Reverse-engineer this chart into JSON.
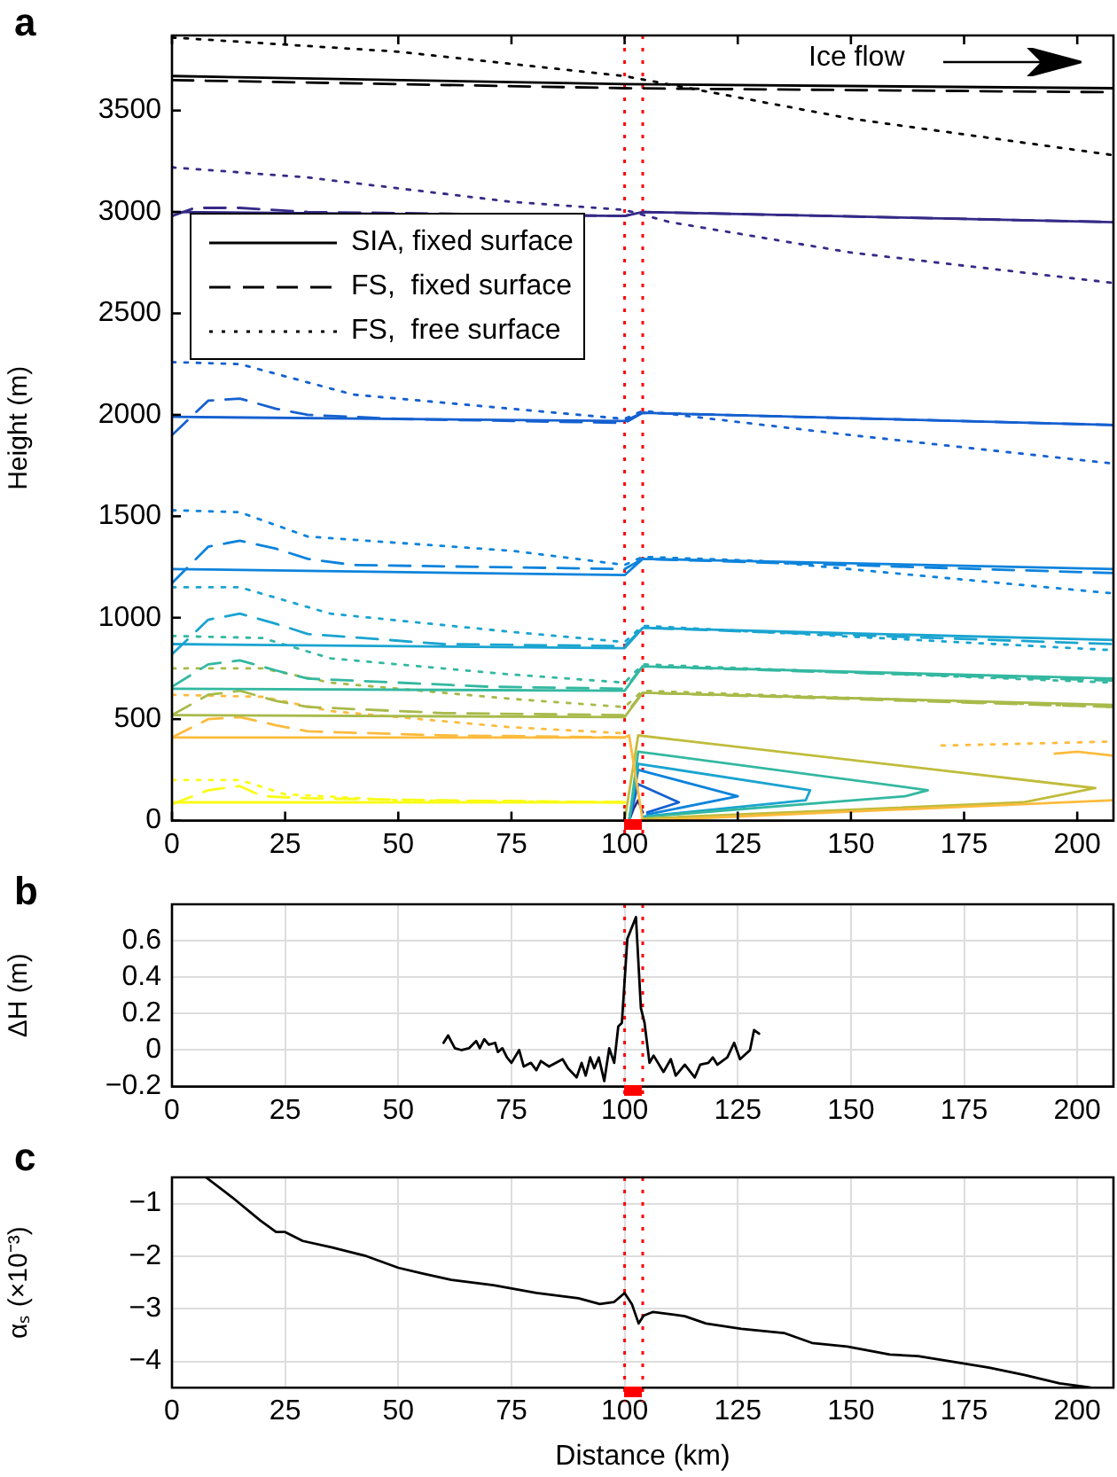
{
  "chart_data": [
    {
      "type": "line",
      "title": "a",
      "ylabel": "Height (m)",
      "xlim": [
        0,
        208
      ],
      "ylim": [
        0,
        3870
      ],
      "xticks": [
        0,
        25,
        50,
        75,
        100,
        125,
        150,
        175,
        200
      ],
      "yticks": [
        0,
        500,
        1000,
        1500,
        2000,
        2500,
        3000,
        3500
      ],
      "grid": false,
      "legend": "top left",
      "annotations": [
        "Ice flow"
      ],
      "ref_lines": [
        {
          "axis": "x",
          "value": 100,
          "color": "#ff0000",
          "line_style": "dotted"
        },
        {
          "axis": "x",
          "value": 104,
          "color": "#ff0000",
          "line_style": "dotted"
        }
      ],
      "series": [
        {
          "name": "SIA, fixed surface",
          "color": "#000000",
          "line_style": "solid",
          "x": [
            0,
            100,
            208
          ],
          "values": [
            3670,
            3630,
            3610
          ]
        },
        {
          "name": "FS,  fixed surface",
          "color": "#000000",
          "line_style": "dashed",
          "x": [
            0,
            100,
            208
          ],
          "values": [
            3650,
            3610,
            3590
          ]
        },
        {
          "name": "FS,  free surface",
          "color": "#000000",
          "line_style": "dotted",
          "x": [
            0,
            50,
            100,
            150,
            208
          ],
          "values": [
            3860,
            3790,
            3670,
            3460,
            3280
          ]
        },
        {
          "color": "#352a87",
          "line_style": "solid",
          "x": [
            0,
            100,
            104,
            208
          ],
          "values": [
            3000,
            2980,
            3000,
            2950
          ]
        },
        {
          "color": "#352a87",
          "line_style": "dashed",
          "x": [
            0,
            5,
            15,
            30,
            100,
            104,
            208
          ],
          "values": [
            2980,
            3020,
            3020,
            3000,
            2980,
            3000,
            2950
          ]
        },
        {
          "color": "#352a87",
          "line_style": "dotted",
          "x": [
            0,
            30,
            75,
            100,
            110,
            150,
            208
          ],
          "values": [
            3220,
            3170,
            3050,
            3010,
            2950,
            2800,
            2650
          ]
        },
        {
          "color": "#1560d0",
          "line_style": "solid",
          "x": [
            0,
            100,
            104,
            208
          ],
          "values": [
            1990,
            1970,
            2010,
            1950
          ]
        },
        {
          "color": "#1560d0",
          "line_style": "dashed",
          "x": [
            0,
            8,
            15,
            23,
            30,
            50,
            100,
            104,
            208
          ],
          "values": [
            1900,
            2070,
            2080,
            2030,
            2000,
            1980,
            1960,
            2010,
            1950
          ]
        },
        {
          "color": "#1560d0",
          "line_style": "dotted",
          "x": [
            0,
            15,
            40,
            75,
            100,
            104,
            150,
            208
          ],
          "values": [
            2260,
            2250,
            2100,
            2030,
            1980,
            2020,
            1900,
            1760
          ]
        },
        {
          "color": "#0d83dc",
          "line_style": "solid",
          "x": [
            0,
            100,
            104,
            208
          ],
          "values": [
            1240,
            1210,
            1290,
            1240
          ]
        },
        {
          "color": "#0d83dc",
          "line_style": "dashed",
          "x": [
            0,
            8,
            15,
            23,
            30,
            40,
            100,
            104,
            208
          ],
          "values": [
            1170,
            1350,
            1380,
            1340,
            1290,
            1260,
            1240,
            1290,
            1220
          ]
        },
        {
          "color": "#0d83dc",
          "line_style": "dotted",
          "x": [
            0,
            15,
            30,
            75,
            100,
            104,
            130,
            208
          ],
          "values": [
            1530,
            1520,
            1400,
            1330,
            1260,
            1300,
            1280,
            1120
          ]
        },
        {
          "color": "#1aa4d0",
          "line_style": "solid",
          "x": [
            0,
            100,
            104,
            208
          ],
          "values": [
            870,
            850,
            950,
            890
          ]
        },
        {
          "color": "#1aa4d0",
          "line_style": "dashed",
          "x": [
            0,
            8,
            15,
            23,
            30,
            60,
            100,
            104,
            208
          ],
          "values": [
            820,
            990,
            1020,
            970,
            920,
            870,
            860,
            950,
            870
          ]
        },
        {
          "color": "#1aa4d0",
          "line_style": "dotted",
          "x": [
            0,
            15,
            35,
            75,
            100,
            104,
            208
          ],
          "values": [
            1150,
            1150,
            1020,
            930,
            880,
            960,
            840
          ]
        },
        {
          "color": "#33b8a0",
          "line_style": "solid",
          "x": [
            0,
            100,
            104,
            208
          ],
          "values": [
            650,
            640,
            760,
            700
          ]
        },
        {
          "color": "#33b8a0",
          "line_style": "dashed",
          "x": [
            0,
            8,
            15,
            23,
            30,
            70,
            100,
            104,
            208
          ],
          "values": [
            660,
            770,
            790,
            740,
            700,
            660,
            650,
            760,
            690
          ]
        },
        {
          "color": "#33b8a0",
          "line_style": "dotted",
          "x": [
            0,
            20,
            35,
            75,
            100,
            104,
            208
          ],
          "values": [
            910,
            900,
            800,
            720,
            680,
            770,
            680
          ]
        },
        {
          "color": "#a8ba4a",
          "line_style": "solid",
          "x": [
            0,
            100,
            104,
            208
          ],
          "values": [
            520,
            510,
            630,
            570
          ]
        },
        {
          "color": "#a8ba4a",
          "line_style": "dashed",
          "x": [
            0,
            8,
            15,
            23,
            30,
            60,
            100,
            104,
            208
          ],
          "values": [
            520,
            620,
            640,
            590,
            560,
            530,
            520,
            630,
            560
          ]
        },
        {
          "color": "#a8ba4a",
          "line_style": "dotted",
          "x": [
            0,
            20,
            35,
            75,
            100,
            104,
            208
          ],
          "values": [
            750,
            750,
            680,
            600,
            560,
            640,
            560
          ]
        },
        {
          "color": "#fcbb3d",
          "line_style": "solid",
          "x": [
            0,
            100,
            101,
            104,
            208
          ],
          "values": [
            410,
            410,
            420,
            0,
            100
          ]
        },
        {
          "color": "#fcbb3d",
          "line_style": "dashed",
          "x": [
            0,
            8,
            15,
            23,
            30,
            60,
            100
          ],
          "values": [
            410,
            500,
            510,
            470,
            440,
            420,
            410
          ]
        },
        {
          "color": "#fcbb3d",
          "line_style": "dotted",
          "x": [
            0,
            20,
            35,
            75,
            100
          ],
          "values": [
            620,
            610,
            540,
            460,
            430
          ]
        },
        {
          "color": "#fcbb3d",
          "line_style": "dotted",
          "x": [
            170,
            190,
            208
          ],
          "values": [
            370,
            380,
            390
          ]
        },
        {
          "color": "#fcbb3d",
          "line_style": "solid",
          "x": [
            195,
            200,
            208
          ],
          "values": [
            330,
            340,
            320
          ]
        },
        {
          "color": "#f9fb15",
          "line_style": "solid",
          "x": [
            0,
            100
          ],
          "values": [
            90,
            90
          ]
        },
        {
          "color": "#f9fb15",
          "line_style": "dashed",
          "x": [
            0,
            8,
            15,
            20,
            30,
            60,
            100
          ],
          "values": [
            80,
            150,
            170,
            120,
            110,
            100,
            90
          ]
        },
        {
          "color": "#f9fb15",
          "line_style": "dotted",
          "x": [
            0,
            15,
            25,
            50,
            100
          ],
          "values": [
            200,
            200,
            130,
            100,
            90
          ]
        },
        {
          "color": "#c0bc3c",
          "line_style": "solid",
          "x": [
            100,
            103,
            204,
            188,
            104
          ],
          "values": [
            0,
            420,
            160,
            90,
            10
          ]
        },
        {
          "color": "#33b8a0",
          "line_style": "solid",
          "x": [
            101,
            103,
            167,
            162,
            105
          ],
          "values": [
            0,
            340,
            150,
            120,
            20
          ]
        },
        {
          "color": "#1aa4d0",
          "line_style": "solid",
          "x": [
            101,
            103,
            141,
            140,
            104
          ],
          "values": [
            0,
            280,
            150,
            100,
            20
          ]
        },
        {
          "color": "#0d83dc",
          "line_style": "solid",
          "x": [
            101,
            103,
            125,
            105
          ],
          "values": [
            0,
            250,
            120,
            30
          ]
        },
        {
          "color": "#1560d0",
          "line_style": "solid",
          "x": [
            101,
            103,
            112,
            105
          ],
          "values": [
            0,
            180,
            90,
            40
          ]
        },
        {
          "color": "#352a87",
          "line_style": "solid",
          "x": [
            101,
            102,
            103,
            104
          ],
          "values": [
            0,
            60,
            100,
            40
          ]
        }
      ]
    },
    {
      "type": "line",
      "title": "b",
      "ylabel": "ΔH (m)",
      "xlim": [
        0,
        208
      ],
      "ylim": [
        -0.2,
        0.8
      ],
      "xticks": [
        0,
        25,
        50,
        75,
        100,
        125,
        150,
        175,
        200
      ],
      "yticks": [
        -0.2,
        0,
        0.2,
        0.4,
        0.6
      ],
      "grid": true,
      "ref_lines": [
        {
          "axis": "x",
          "value": 100,
          "color": "#ff0000",
          "line_style": "dotted"
        },
        {
          "axis": "x",
          "value": 104,
          "color": "#ff0000",
          "line_style": "dotted"
        }
      ],
      "series": [
        {
          "color": "#000000",
          "line_style": "solid",
          "x": [
            60,
            61,
            62.5,
            64,
            65.6,
            67.2,
            68,
            69,
            70,
            71.4,
            72,
            73,
            74,
            75,
            76.7,
            77.7,
            79.3,
            80.5,
            81.5,
            83.3,
            86.3,
            87.5,
            89.4,
            90.5,
            91.4,
            92.4,
            93.3,
            94.3,
            95.5,
            96.6,
            97.7,
            98.6,
            99.4,
            100.6,
            102.5,
            103.6,
            104.4,
            105.5,
            106.4,
            108.6,
            110.2,
            111.3,
            113.3,
            115.5,
            116.7,
            118.5,
            119.5,
            120.5,
            122.7,
            124.2,
            125.5,
            127.7,
            128.6,
            129.7
          ],
          "values": [
            0.04,
            0.08,
            0.01,
            0,
            0.01,
            0.05,
            0.01,
            0.06,
            0.03,
            0.04,
            -0.01,
            0.01,
            -0.04,
            -0.07,
            0,
            -0.09,
            -0.07,
            -0.11,
            -0.06,
            -0.09,
            -0.05,
            -0.1,
            -0.15,
            -0.07,
            -0.14,
            -0.04,
            -0.1,
            -0.04,
            -0.17,
            0.01,
            -0.07,
            0.13,
            0.15,
            0.61,
            0.73,
            0.23,
            0.15,
            -0.07,
            -0.03,
            -0.12,
            -0.05,
            -0.14,
            -0.08,
            -0.15,
            -0.08,
            -0.07,
            -0.04,
            -0.08,
            -0.04,
            0.04,
            -0.05,
            0,
            0.11,
            0.09
          ]
        }
      ]
    },
    {
      "type": "line",
      "title": "c",
      "ylabel": "αₛ (×10⁻³)",
      "xlabel": "Distance (km)",
      "xlim": [
        0,
        208
      ],
      "ylim": [
        -4.5,
        -0.5
      ],
      "xticks": [
        0,
        25,
        50,
        75,
        100,
        125,
        150,
        175,
        200
      ],
      "yticks": [
        -4,
        -3,
        -2,
        -1
      ],
      "grid": true,
      "ref_lines": [
        {
          "axis": "x",
          "value": 100,
          "color": "#ff0000",
          "line_style": "dotted"
        },
        {
          "axis": "x",
          "value": 104,
          "color": "#ff0000",
          "line_style": "dotted"
        }
      ],
      "series": [
        {
          "color": "#000000",
          "line_style": "solid",
          "x": [
            7.5,
            13.3,
            19.5,
            23,
            25,
            28.9,
            35.2,
            43,
            50,
            55.5,
            61.7,
            71,
            80.5,
            89.8,
            94.5,
            97.7,
            100,
            101.6,
            103.1,
            104.2,
            106.3,
            113.3,
            118,
            125.8,
            135.2,
            141.4,
            149.2,
            158.6,
            164.8,
            172.7,
            180.5,
            188.3,
            196.1,
            203
          ],
          "values": [
            -0.5,
            -0.88,
            -1.32,
            -1.54,
            -1.54,
            -1.71,
            -1.83,
            -2.0,
            -2.22,
            -2.33,
            -2.45,
            -2.55,
            -2.7,
            -2.8,
            -2.91,
            -2.87,
            -2.7,
            -2.91,
            -3.28,
            -3.13,
            -3.06,
            -3.14,
            -3.28,
            -3.38,
            -3.46,
            -3.65,
            -3.72,
            -3.87,
            -3.9,
            -4.01,
            -4.12,
            -4.26,
            -4.42,
            -4.5
          ]
        }
      ]
    }
  ]
}
